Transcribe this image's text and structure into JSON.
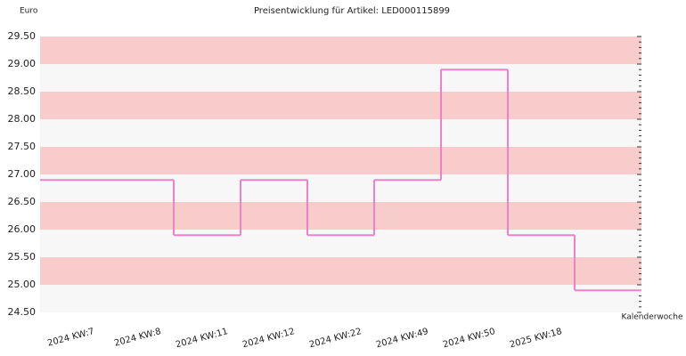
{
  "chart_data": {
    "type": "step",
    "title": "Preisentwicklung für Artikel: LED000115899",
    "y_label": "Euro",
    "x_label": "Kalenderwoche",
    "categories": [
      "2024 KW:7",
      "2024 KW:8",
      "2024 KW:11",
      "2024 KW:12",
      "2024 KW:22",
      "2024 KW:49",
      "2024 KW:50",
      "2025 KW:18"
    ],
    "values": [
      26.9,
      25.9,
      26.9,
      25.9,
      26.9,
      28.9,
      25.9,
      24.9
    ],
    "color": "#f080c8",
    "band_colors": [
      "#f7f7f7",
      "#f9cccc"
    ],
    "ylim": [
      24.5,
      29.5
    ],
    "yticks": [
      {
        "value": 24.5,
        "label": "24.50"
      },
      {
        "value": 25,
        "label": "25.00"
      },
      {
        "value": 25.5,
        "label": "25.50"
      },
      {
        "value": 26,
        "label": "26.00"
      },
      {
        "value": 26.5,
        "label": "26.50"
      },
      {
        "value": 27,
        "label": "27.00"
      },
      {
        "value": 27.5,
        "label": "27.50"
      },
      {
        "value": 28,
        "label": "28.00"
      },
      {
        "value": 28.5,
        "label": "28.50"
      },
      {
        "value": 29,
        "label": "29.00"
      },
      {
        "value": 29.5,
        "label": "29.50"
      }
    ]
  }
}
